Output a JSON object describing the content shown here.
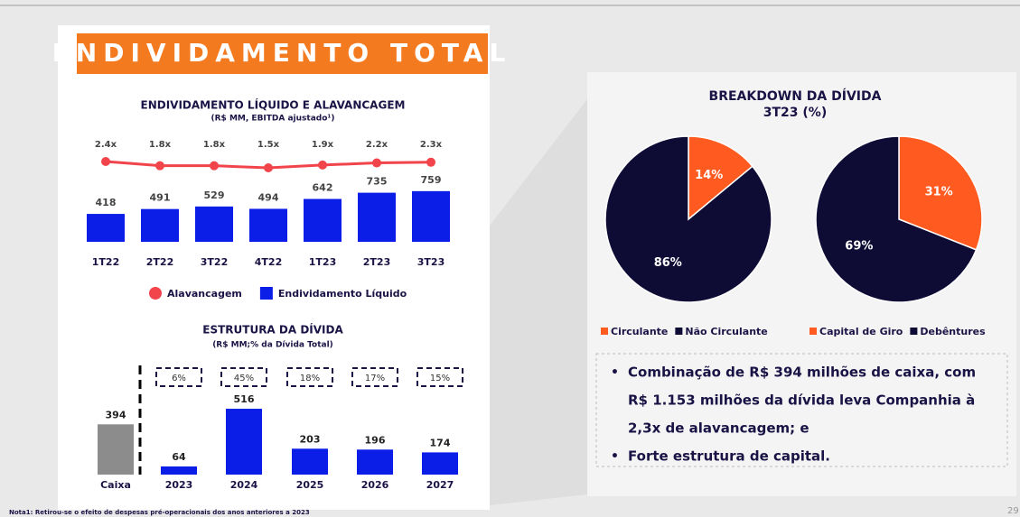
{
  "title": "ENDIVIDAMENTO TOTAL",
  "breakdown": {
    "title": "BREAKDOWN DA DÍVIDA",
    "subtitle": "3T23 (%)"
  },
  "chart_data": [
    {
      "type": "combo",
      "title": "ENDIVIDAMENTO LÍQUIDO E ALAVANCAGEM",
      "subtitle": "(R$ MM, EBITDA ajustado¹)",
      "categories": [
        "1T22",
        "2T22",
        "3T22",
        "4T22",
        "1T23",
        "2T23",
        "3T23"
      ],
      "series": [
        {
          "name": "Alavancagem",
          "type": "line",
          "color": "#f2444b",
          "values": [
            2.4,
            1.8,
            1.8,
            1.5,
            1.9,
            2.2,
            2.3
          ],
          "value_labels": [
            "2.4x",
            "1.8x",
            "1.8x",
            "1.5x",
            "1.9x",
            "2.2x",
            "2.3x"
          ]
        },
        {
          "name": "Endividamento Líquido",
          "type": "bar",
          "color": "#0a1ee8",
          "values": [
            418,
            491,
            529,
            494,
            642,
            735,
            759
          ]
        }
      ]
    },
    {
      "type": "bar",
      "title": "ESTRUTURA DA DÍVIDA",
      "subtitle": "(R$ MM;% da Dívida Total)",
      "categories": [
        "Caixa",
        "2023",
        "2024",
        "2025",
        "2026",
        "2027"
      ],
      "values": [
        394,
        64,
        516,
        203,
        196,
        174
      ],
      "colors": [
        "#8c8c8c",
        "#0a1ee8",
        "#0a1ee8",
        "#0a1ee8",
        "#0a1ee8",
        "#0a1ee8"
      ],
      "shares": [
        null,
        6,
        45,
        18,
        17,
        15
      ],
      "share_labels": [
        null,
        "6%",
        "45%",
        "18%",
        "17%",
        "15%"
      ]
    },
    {
      "type": "pie",
      "categories": [
        "Circulante",
        "Não Circulante"
      ],
      "values": [
        14,
        86
      ],
      "value_labels": [
        "14%",
        "86%"
      ],
      "colors": [
        "#ff5a1f",
        "#0e0b35"
      ]
    },
    {
      "type": "pie",
      "categories": [
        "Capital de Giro",
        "Debêntures"
      ],
      "values": [
        31,
        69
      ],
      "value_labels": [
        "31%",
        "69%"
      ],
      "colors": [
        "#ff5a1f",
        "#0e0b35"
      ]
    }
  ],
  "bullets": [
    "Combinação de R$ 394 milhões de caixa, com",
    "R$ 1.153 milhões da dívida leva Companhia à",
    "2,3x de alavancagem; e",
    "Forte estrutura de capital."
  ],
  "footnote": "Nota1: Retirou-se o efeito de despesas pré-operacionais dos anos anteriores a 2023",
  "page": "29"
}
